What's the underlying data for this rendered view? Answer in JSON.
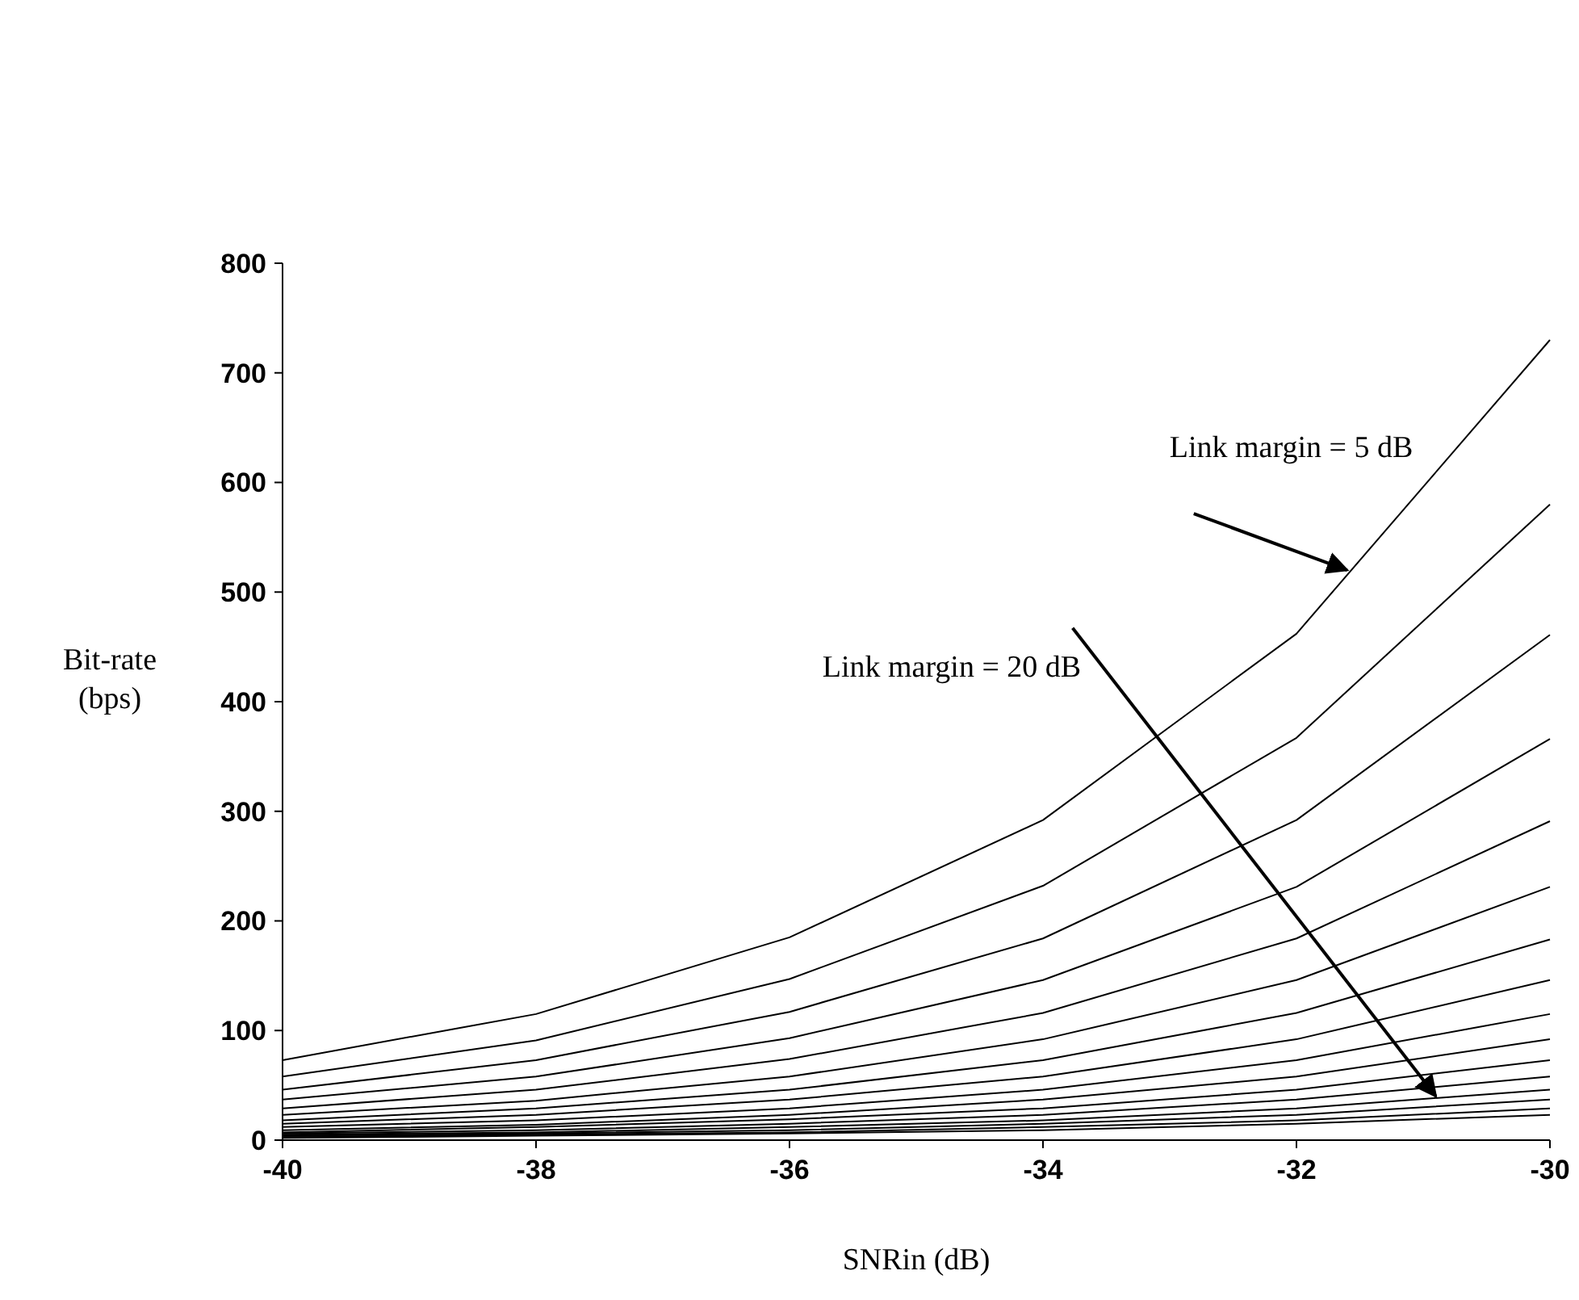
{
  "chart_data": {
    "type": "line",
    "xlabel": "SNRin (dB)",
    "ylabel": "Bit-rate (bps)",
    "x": [
      -40,
      -38,
      -36,
      -34,
      -32,
      -30
    ],
    "xlim": [
      -40,
      -30
    ],
    "xticks": [
      -40,
      -38,
      -36,
      -34,
      -32,
      -30
    ],
    "ylim": [
      0,
      800
    ],
    "yticks": [
      0,
      100,
      200,
      300,
      400,
      500,
      600,
      700,
      800
    ],
    "grid": false,
    "line_style": "solid",
    "series": [
      {
        "color": "#000000",
        "values": [
          73,
          115,
          185,
          292,
          462,
          730
        ]
      },
      {
        "color": "#000000",
        "values": [
          58,
          91,
          147,
          232,
          367,
          580
        ]
      },
      {
        "color": "#000000",
        "values": [
          46,
          73,
          117,
          184,
          292,
          461
        ]
      },
      {
        "color": "#000000",
        "values": [
          37,
          58,
          93,
          146,
          231,
          366
        ]
      },
      {
        "color": "#000000",
        "values": [
          29,
          46,
          74,
          116,
          184,
          291
        ]
      },
      {
        "color": "#000000",
        "values": [
          23,
          36,
          58,
          92,
          146,
          231
        ]
      },
      {
        "color": "#000000",
        "values": [
          18,
          29,
          46,
          73,
          116,
          183
        ]
      },
      {
        "color": "#000000",
        "values": [
          15,
          23,
          37,
          58,
          92,
          146
        ]
      },
      {
        "color": "#000000",
        "values": [
          12,
          18,
          29,
          46,
          73,
          115
        ]
      },
      {
        "color": "#000000",
        "values": [
          9,
          14,
          23,
          37,
          58,
          92
        ]
      },
      {
        "color": "#000000",
        "values": [
          7,
          12,
          19,
          29,
          46,
          73
        ]
      },
      {
        "color": "#000000",
        "values": [
          6,
          9,
          15,
          23,
          37,
          58
        ]
      },
      {
        "color": "#000000",
        "values": [
          5,
          7,
          12,
          18,
          29,
          46
        ]
      },
      {
        "color": "#000000",
        "values": [
          4,
          6,
          9,
          15,
          23,
          37
        ]
      },
      {
        "color": "#000000",
        "values": [
          3,
          5,
          7,
          12,
          18,
          29
        ]
      },
      {
        "color": "#000000",
        "values": [
          2,
          4,
          6,
          9,
          15,
          23
        ]
      }
    ],
    "annotations": [
      "Link margin = 5 dB",
      "Link margin = 20 dB"
    ]
  }
}
